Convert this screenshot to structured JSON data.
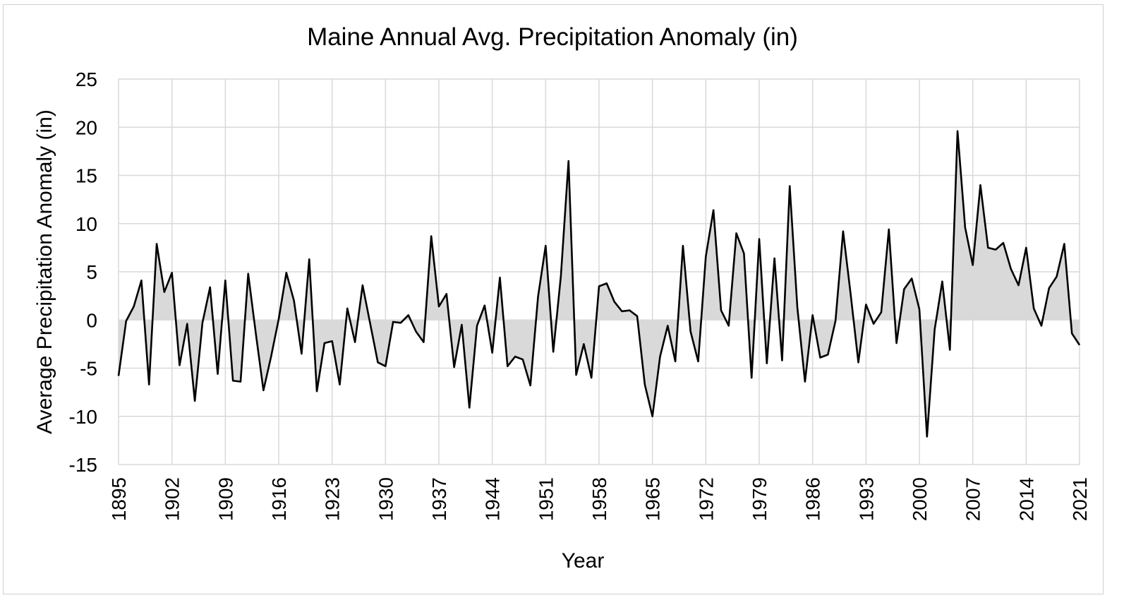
{
  "chart_data": {
    "type": "area",
    "title": "Maine Annual Avg. Precipitation Anomaly (in)",
    "xlabel": "Year",
    "ylabel": "Average Precipitation Anomaly (in)",
    "ylim": [
      -15,
      25
    ],
    "xlim": [
      1895,
      2021
    ],
    "y_ticks": [
      "25",
      "20",
      "15",
      "10",
      "5",
      "0",
      "-5",
      "-10",
      "-15"
    ],
    "x_ticks": [
      "1895",
      "1902",
      "1909",
      "1916",
      "1923",
      "1930",
      "1937",
      "1944",
      "1951",
      "1958",
      "1965",
      "1972",
      "1979",
      "1986",
      "1993",
      "2000",
      "2007",
      "2014",
      "2021"
    ],
    "grid": true,
    "legend": "none",
    "colors": {
      "line": "#000000",
      "fill": "#d9d9d9",
      "grid": "#d9d9d9"
    },
    "x": [
      1895,
      1896,
      1897,
      1898,
      1899,
      1900,
      1901,
      1902,
      1903,
      1904,
      1905,
      1906,
      1907,
      1908,
      1909,
      1910,
      1911,
      1912,
      1913,
      1914,
      1915,
      1916,
      1917,
      1918,
      1919,
      1920,
      1921,
      1922,
      1923,
      1924,
      1925,
      1926,
      1927,
      1928,
      1929,
      1930,
      1931,
      1932,
      1933,
      1934,
      1935,
      1936,
      1937,
      1938,
      1939,
      1940,
      1941,
      1942,
      1943,
      1944,
      1945,
      1946,
      1947,
      1948,
      1949,
      1950,
      1951,
      1952,
      1953,
      1954,
      1955,
      1956,
      1957,
      1958,
      1959,
      1960,
      1961,
      1962,
      1963,
      1964,
      1965,
      1966,
      1967,
      1968,
      1969,
      1970,
      1971,
      1972,
      1973,
      1974,
      1975,
      1976,
      1977,
      1978,
      1979,
      1980,
      1981,
      1982,
      1983,
      1984,
      1985,
      1986,
      1987,
      1988,
      1989,
      1990,
      1991,
      1992,
      1993,
      1994,
      1995,
      1996,
      1997,
      1998,
      1999,
      2000,
      2001,
      2002,
      2003,
      2004,
      2005,
      2006,
      2007,
      2008,
      2009,
      2010,
      2011,
      2012,
      2013,
      2014,
      2015,
      2016,
      2017,
      2018,
      2019,
      2020,
      2021
    ],
    "values": [
      -5.8,
      -0.1,
      1.4,
      4.1,
      -6.7,
      7.9,
      2.9,
      4.9,
      -4.7,
      -0.4,
      -8.4,
      -0.3,
      3.4,
      -5.6,
      4.1,
      -6.3,
      -6.4,
      4.8,
      -1.4,
      -7.3,
      -3.8,
      0.1,
      4.9,
      2.0,
      -3.5,
      6.3,
      -7.4,
      -2.4,
      -2.2,
      -6.7,
      1.2,
      -2.3,
      3.6,
      -0.4,
      -4.4,
      -4.8,
      -0.2,
      -0.3,
      0.5,
      -1.2,
      -2.3,
      8.7,
      1.4,
      2.7,
      -4.9,
      -0.5,
      -9.1,
      -0.6,
      1.5,
      -3.4,
      4.4,
      -4.8,
      -3.8,
      -4.1,
      -6.8,
      2.4,
      7.7,
      -3.3,
      4.6,
      16.5,
      -5.7,
      -2.5,
      -6.0,
      3.5,
      3.8,
      1.9,
      0.9,
      1.0,
      0.4,
      -6.7,
      -10.0,
      -3.8,
      -0.6,
      -4.3,
      7.7,
      -1.2,
      -4.3,
      6.6,
      11.4,
      1.0,
      -0.6,
      9.0,
      6.9,
      -6.0,
      8.4,
      -4.5,
      6.4,
      -4.2,
      13.9,
      1.3,
      -6.4,
      0.5,
      -3.9,
      -3.6,
      -0.1,
      9.2,
      2.6,
      -4.4,
      1.6,
      -0.4,
      0.8,
      9.4,
      -2.4,
      3.2,
      4.3,
      1.1,
      -12.1,
      -1.0,
      4.0,
      -3.1,
      19.6,
      9.6,
      5.7,
      14.0,
      7.5,
      7.3,
      8.0,
      5.3,
      3.6,
      7.5,
      1.2,
      -0.6,
      3.3,
      4.5,
      7.9,
      -1.4,
      -2.6
    ]
  }
}
